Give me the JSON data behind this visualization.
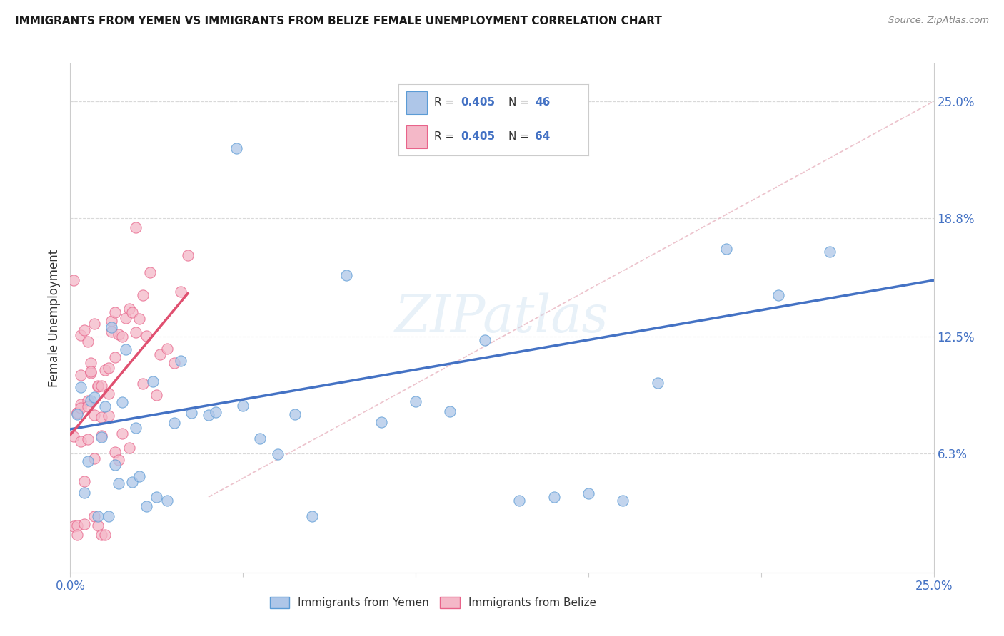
{
  "title": "IMMIGRANTS FROM YEMEN VS IMMIGRANTS FROM BELIZE FEMALE UNEMPLOYMENT CORRELATION CHART",
  "source": "Source: ZipAtlas.com",
  "ylabel": "Female Unemployment",
  "ytick_labels": [
    "25.0%",
    "18.8%",
    "12.5%",
    "6.3%"
  ],
  "ytick_values": [
    0.25,
    0.188,
    0.125,
    0.063
  ],
  "xrange": [
    0.0,
    0.25
  ],
  "yrange": [
    0.0,
    0.27
  ],
  "legend_label_yemen": "Immigrants from Yemen",
  "legend_label_belize": "Immigrants from Belize",
  "color_yemen_fill": "#aec6e8",
  "color_yemen_edge": "#5b9bd5",
  "color_belize_fill": "#f4b8c8",
  "color_belize_edge": "#e8638a",
  "color_line_yemen": "#4472c4",
  "color_line_belize": "#e05070",
  "color_diag": "#e8b4c0",
  "color_text_blue": "#4472c4",
  "color_grid": "#d9d9d9",
  "color_tick_label": "#4472c4",
  "yemen_line_x0": 0.0,
  "yemen_line_y0": 0.076,
  "yemen_line_x1": 0.25,
  "yemen_line_y1": 0.155,
  "belize_line_x0": 0.0,
  "belize_line_y0": 0.073,
  "belize_line_x1": 0.034,
  "belize_line_y1": 0.148,
  "diag_line_x0": 0.04,
  "diag_line_y0": 0.04,
  "diag_line_x1": 0.25,
  "diag_line_y1": 0.25
}
